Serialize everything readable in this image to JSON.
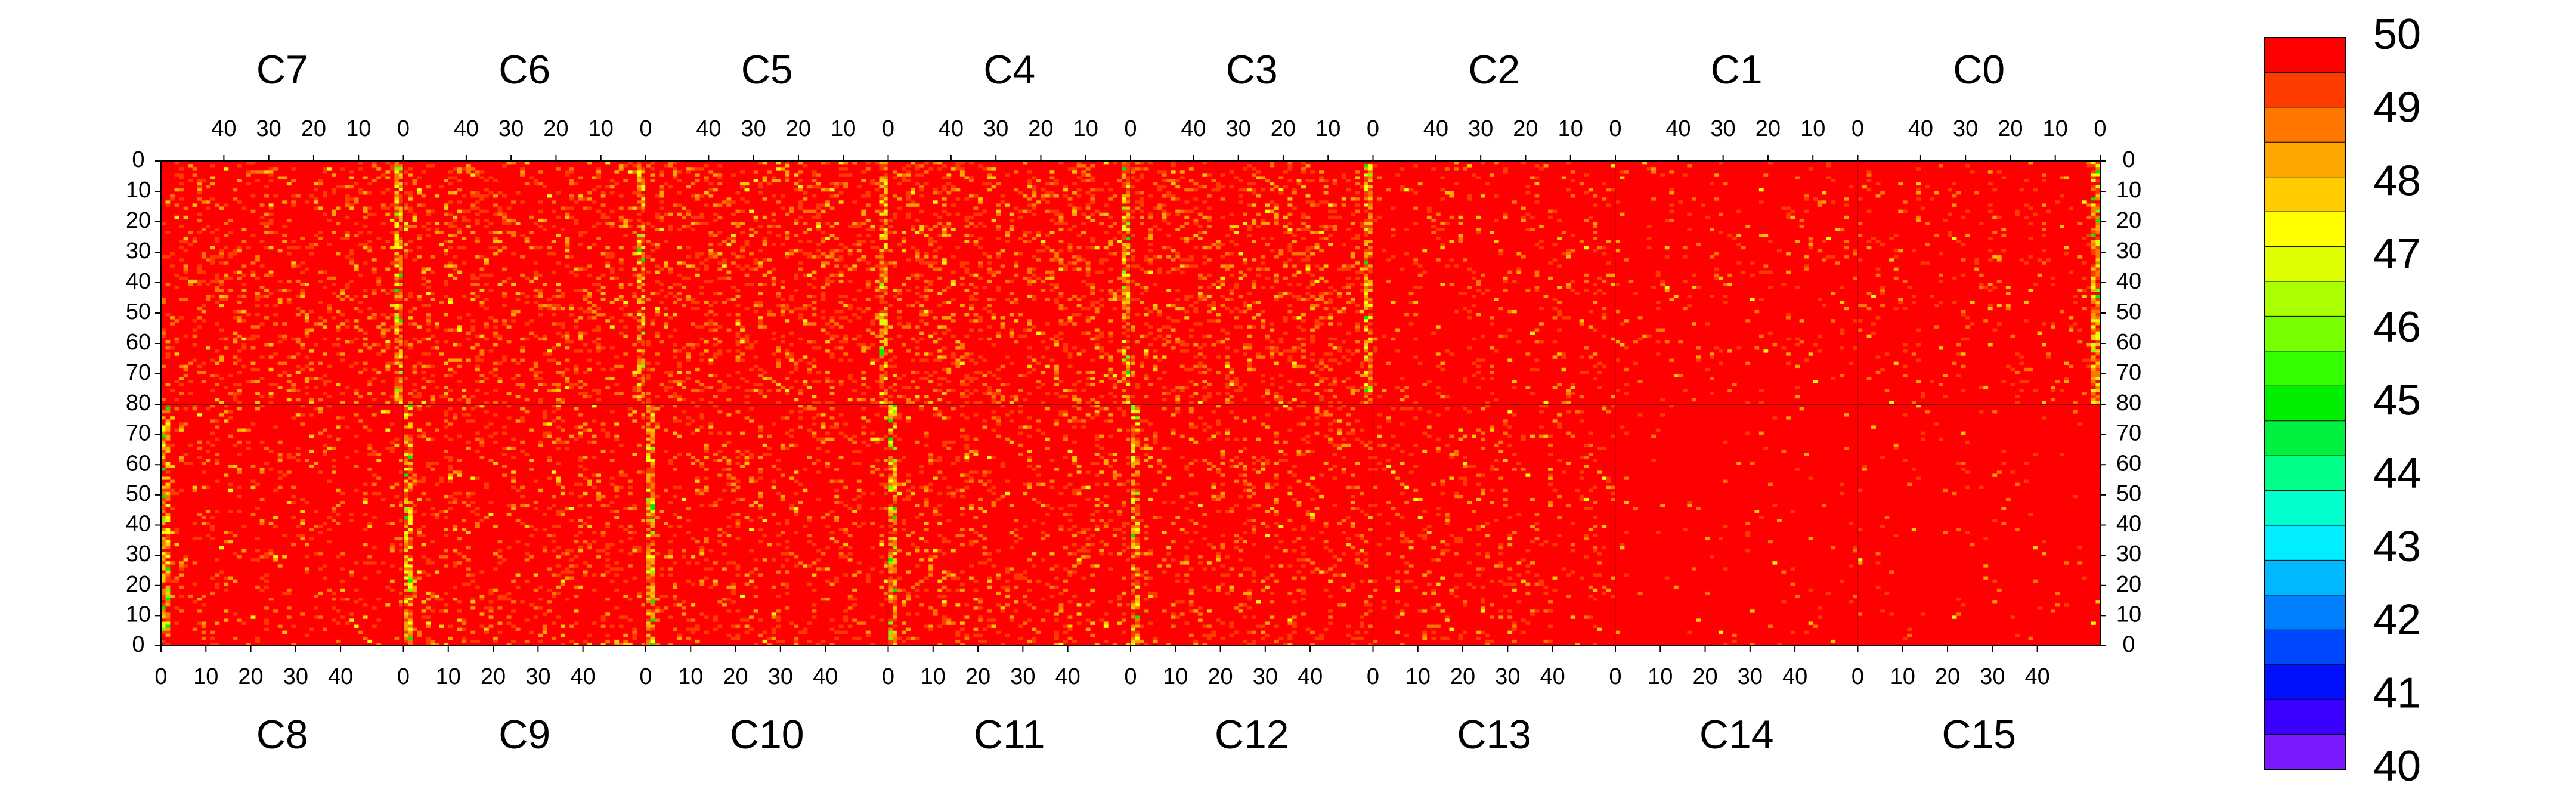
{
  "chart_data": {
    "type": "heatmap",
    "title": "",
    "top_panels": [
      "C7",
      "C6",
      "C5",
      "C4",
      "C3",
      "C2",
      "C1",
      "C0"
    ],
    "bottom_panels": [
      "C8",
      "C9",
      "C10",
      "C11",
      "C12",
      "C13",
      "C14",
      "C15"
    ],
    "x_ticks_top": [
      "40",
      "30",
      "20",
      "10",
      "0"
    ],
    "x_ticks_bottom": [
      "0",
      "10",
      "20",
      "30",
      "40"
    ],
    "y_ticks_upper": [
      "0",
      "10",
      "20",
      "30",
      "40",
      "50",
      "60",
      "70",
      "80"
    ],
    "y_ticks_lower": [
      "70",
      "60",
      "50",
      "40",
      "30",
      "20",
      "10",
      "0"
    ],
    "panel_columns": 54,
    "rows_per_half": 80,
    "zlim": [
      40,
      50
    ],
    "colorbar": {
      "tick_labels": [
        "50",
        "49",
        "48",
        "47",
        "46",
        "45",
        "44",
        "43",
        "42",
        "41",
        "40"
      ],
      "colors": [
        "#7a1aff",
        "#3a00ff",
        "#0010ff",
        "#0048ff",
        "#0080ff",
        "#00b8ff",
        "#00eeff",
        "#00ffcc",
        "#00ff88",
        "#00f040",
        "#00ee00",
        "#33ff00",
        "#77ff00",
        "#aaff00",
        "#ddff00",
        "#ffff00",
        "#ffcc00",
        "#ffa500",
        "#ff7700",
        "#ff3c00",
        "#ff0000"
      ]
    },
    "hot_columns": {
      "C7": [
        0
      ],
      "C6": [
        0
      ],
      "C5": [
        0
      ],
      "C4": [
        0
      ],
      "C3": [
        0
      ],
      "C2": [],
      "C1": [],
      "C0": [
        0
      ],
      "C8": [
        0
      ],
      "C9": [
        0
      ],
      "C10": [
        0
      ],
      "C11": [
        0
      ],
      "C12": [
        0
      ],
      "C13": [],
      "C14": [],
      "C15": []
    },
    "noise_level": {
      "C7": 0.16,
      "C6": 0.18,
      "C5": 0.2,
      "C4": 0.2,
      "C3": 0.2,
      "C2": 0.08,
      "C1": 0.05,
      "C0": 0.07,
      "C8": 0.1,
      "C9": 0.14,
      "C10": 0.14,
      "C11": 0.14,
      "C12": 0.14,
      "C13": 0.1,
      "C14": 0.02,
      "C15": 0.02
    }
  }
}
